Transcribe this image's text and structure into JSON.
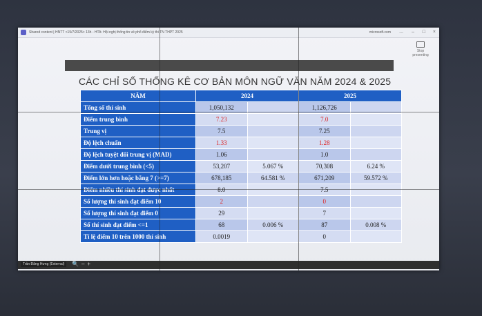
{
  "window": {
    "title": "Shared content | HNTT <15/7/2025> 13h - HTA: Hội nghị thống tin về phổ điểm kỳ thi TN THPT 2025",
    "source": "microsoft.com",
    "controls": [
      "...",
      "–",
      "□",
      "×"
    ]
  },
  "toolbar": {
    "stop_presenting": "Stop presenting"
  },
  "slide": {
    "title": "CÁC CHỈ SỐ THỐNG KÊ CƠ BẢN MÔN NGỮ VĂN NĂM 2024 & 2025"
  },
  "table": {
    "headers": [
      "NĂM",
      "2024",
      "2025"
    ],
    "rows": [
      {
        "label": "Tổng số thí sinh",
        "v2024": "1,050,132",
        "p2024": "",
        "v2025": "1,126,726",
        "p2025": ""
      },
      {
        "label": "Điểm trung bình",
        "v2024": "7.23",
        "p2024": "",
        "v2025": "7.0",
        "p2025": ""
      },
      {
        "label": "Trung vị",
        "v2024": "7.5",
        "p2024": "",
        "v2025": "7.25",
        "p2025": ""
      },
      {
        "label": "Độ lệch chuẩn",
        "v2024": "1.33",
        "p2024": "",
        "v2025": "1.28",
        "p2025": ""
      },
      {
        "label": "Độ lệch tuyệt đối trung vị (MAD)",
        "v2024": "1.06",
        "p2024": "",
        "v2025": "1.0",
        "p2025": ""
      },
      {
        "label": "Điểm dưới trung bình (<5)",
        "v2024": "53,207",
        "p2024": "5.067 %",
        "v2025": "70,308",
        "p2025": "6.24 %"
      },
      {
        "label": "Điểm lớn hơn hoặc bằng 7 (>=7)",
        "v2024": "678,185",
        "p2024": "64.581 %",
        "v2025": "671,209",
        "p2025": "59.572 %"
      },
      {
        "label": "Điểm nhiều thí sinh đạt được nhất",
        "v2024": "8.0",
        "p2024": "",
        "v2025": "7.5",
        "p2025": ""
      },
      {
        "label": "Số lượng thí sinh đạt điểm 10",
        "v2024": "2",
        "p2024": "",
        "v2025": "0",
        "p2025": ""
      },
      {
        "label": "Số lượng thí sinh đạt điểm 0",
        "v2024": "29",
        "p2024": "",
        "v2025": "7",
        "p2025": ""
      },
      {
        "label": "Số thí sinh đạt điểm <=1",
        "v2024": "68",
        "p2024": "0.006 %",
        "v2025": "87",
        "p2025": "0.008 %"
      },
      {
        "label": "Tỉ lệ điểm 10 trên 1000 thí sinh",
        "v2024": "0.0019",
        "p2024": "",
        "v2025": "0",
        "p2025": ""
      }
    ]
  },
  "presenter": {
    "name": "Trần Đăng Hưng (External)"
  },
  "zoom_controls": [
    "🔍",
    "–",
    "+"
  ],
  "colors": {
    "header_blue": "#1f5fc4",
    "highlight_red": "#d22222"
  }
}
